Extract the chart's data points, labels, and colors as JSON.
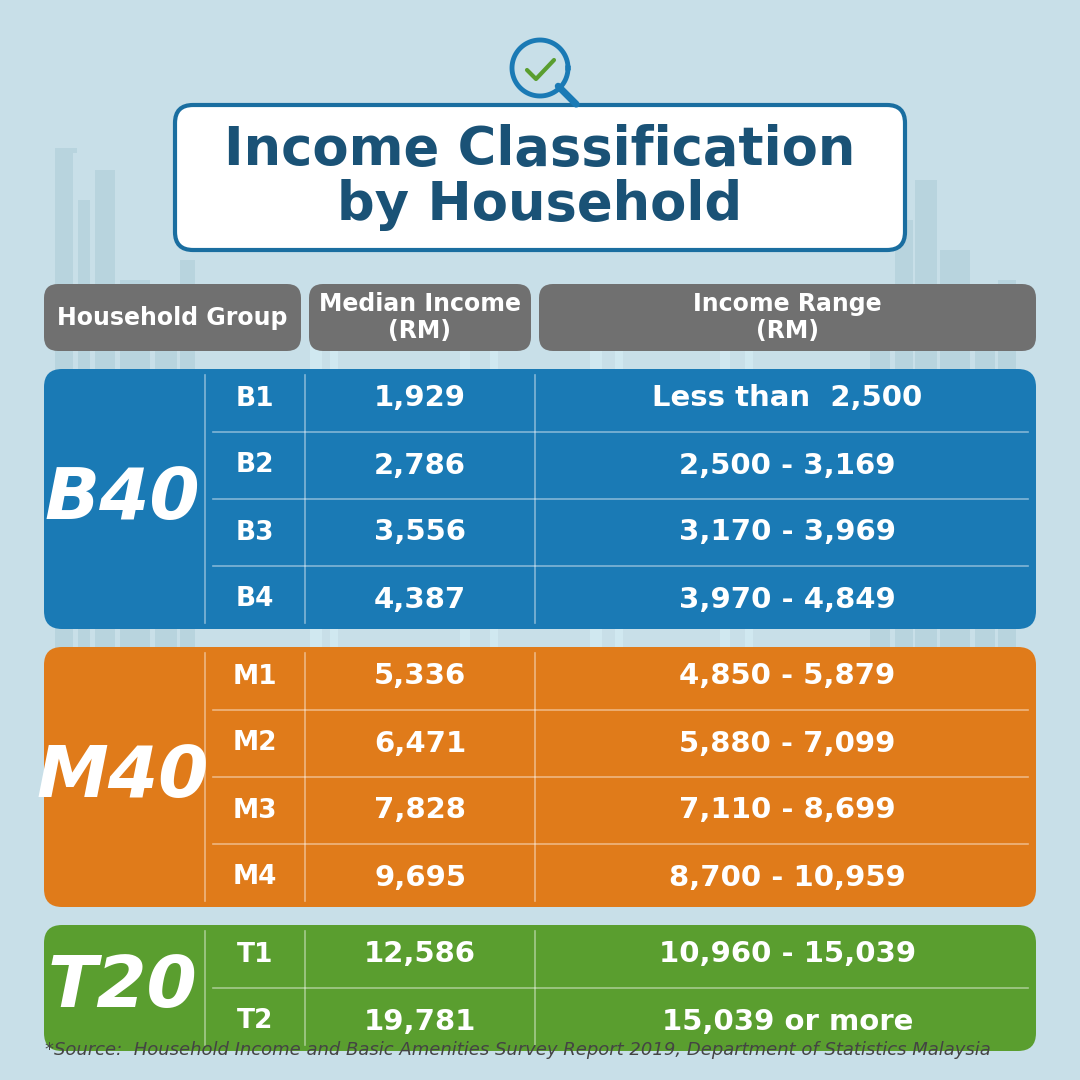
{
  "title_line1": "Income Classification",
  "title_line2": "by Household",
  "title_color": "#1a5276",
  "title_border_color": "#1a6ea0",
  "bg_color": "#c8dfe8",
  "header_bg": "#707070",
  "headers": [
    "Household Group",
    "Median Income\n(RM)",
    "Income Range\n(RM)"
  ],
  "groups": [
    {
      "label": "B40",
      "color": "#1a7ab5",
      "rows": [
        {
          "sub": "B1",
          "median": "1,929",
          "range": "Less than  2,500"
        },
        {
          "sub": "B2",
          "median": "2,786",
          "range": "2,500 - 3,169"
        },
        {
          "sub": "B3",
          "median": "3,556",
          "range": "3,170 - 3,969"
        },
        {
          "sub": "B4",
          "median": "4,387",
          "range": "3,970 - 4,849"
        }
      ]
    },
    {
      "label": "M40",
      "color": "#e07b1a",
      "rows": [
        {
          "sub": "M1",
          "median": "5,336",
          "range": "4,850 - 5,879"
        },
        {
          "sub": "M2",
          "median": "6,471",
          "range": "5,880 - 7,099"
        },
        {
          "sub": "M3",
          "median": "7,828",
          "range": "7,110 - 8,699"
        },
        {
          "sub": "M4",
          "median": "9,695",
          "range": "8,700 - 10,959"
        }
      ]
    },
    {
      "label": "T20",
      "color": "#5a9e2f",
      "rows": [
        {
          "sub": "T1",
          "median": "12,586",
          "range": "10,960 - 15,039"
        },
        {
          "sub": "T2",
          "median": "19,781",
          "range": "15,039 or more"
        }
      ]
    }
  ],
  "source_text": "*Source:  Household Income and Basic Amenities Survey Report 2019, Department of Statistics Malaysia",
  "white": "#ffffff",
  "skyline_color": "#b8d4de",
  "skyline_light": "#d0e8f0"
}
